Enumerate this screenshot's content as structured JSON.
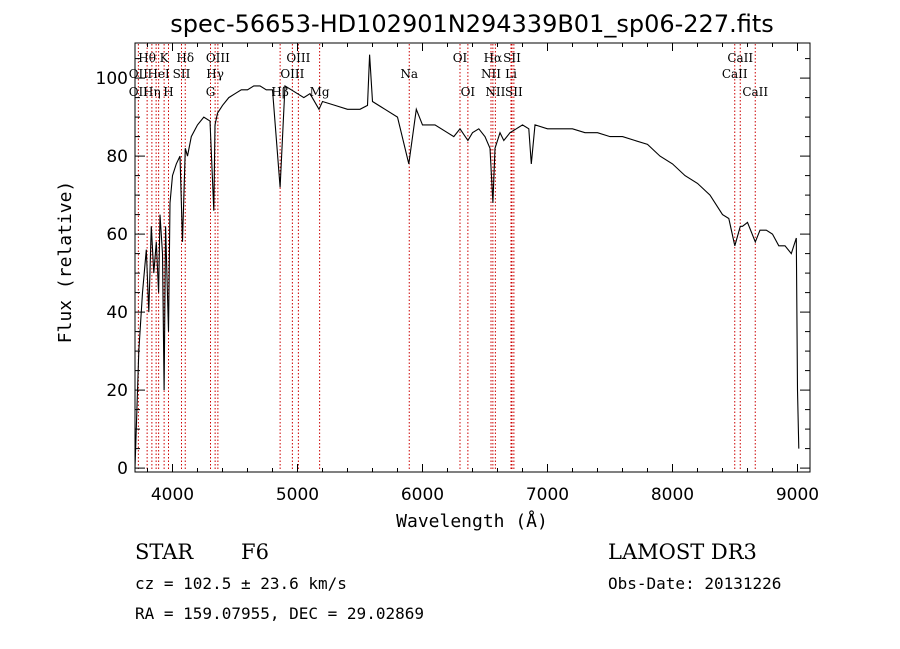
{
  "chart_data": {
    "type": "line",
    "title": "spec-56653-HD102901N294339B01_sp06-227.fits",
    "xlabel": "Wavelength (Å)",
    "ylabel": "Flux (relative)",
    "xlim": [
      3700,
      9100
    ],
    "ylim": [
      -1,
      109
    ],
    "xticks": [
      4000,
      5000,
      6000,
      7000,
      8000,
      9000
    ],
    "yticks": [
      0,
      20,
      40,
      60,
      80,
      100
    ],
    "grid": false,
    "line_color": "#000000",
    "marker_color": "#cc0000",
    "series": [
      {
        "x": [
          3700,
          3730,
          3760,
          3790,
          3810,
          3830,
          3850,
          3870,
          3889,
          3900,
          3920,
          3933,
          3945,
          3968,
          3980,
          4000,
          4030,
          4060,
          4080,
          4102,
          4120,
          4150,
          4200,
          4250,
          4300,
          4330,
          4340,
          4360,
          4400,
          4450,
          4500,
          4550,
          4600,
          4650,
          4700,
          4750,
          4800,
          4861,
          4900,
          4950,
          5000,
          5050,
          5100,
          5172,
          5200,
          5300,
          5400,
          5500,
          5560,
          5577,
          5600,
          5700,
          5800,
          5890,
          5950,
          6000,
          6100,
          6200,
          6250,
          6300,
          6363,
          6400,
          6450,
          6500,
          6540,
          6563,
          6580,
          6620,
          6650,
          6700,
          6750,
          6800,
          6850,
          6870,
          6900,
          7000,
          7100,
          7200,
          7300,
          7400,
          7500,
          7600,
          7700,
          7800,
          7900,
          8000,
          8100,
          8200,
          8300,
          8400,
          8450,
          8498,
          8542,
          8560,
          8600,
          8662,
          8700,
          8750,
          8800,
          8850,
          8900,
          8950,
          8990,
          9000,
          9010
        ],
        "y": [
          0,
          30,
          45,
          56,
          40,
          62,
          50,
          58,
          45,
          65,
          55,
          20,
          62,
          35,
          68,
          75,
          78,
          80,
          58,
          82,
          80,
          85,
          88,
          90,
          89,
          66,
          88,
          91,
          93,
          95,
          96,
          97,
          97,
          98,
          98,
          97,
          97,
          72,
          98,
          97,
          96,
          95,
          96,
          92,
          94,
          93,
          92,
          92,
          93,
          106,
          94,
          92,
          90,
          78,
          92,
          88,
          88,
          86,
          85,
          87,
          84,
          86,
          87,
          85,
          82,
          68,
          82,
          86,
          84,
          86,
          87,
          88,
          87,
          78,
          88,
          87,
          87,
          87,
          86,
          86,
          85,
          85,
          84,
          83,
          80,
          78,
          75,
          73,
          70,
          65,
          64,
          57,
          62,
          62,
          63,
          58,
          61,
          61,
          60,
          57,
          57,
          55,
          59,
          20,
          5
        ]
      }
    ],
    "lines": [
      {
        "wave": 3727,
        "labels": [
          "",
          "OII",
          "OII"
        ]
      },
      {
        "wave": 3797,
        "labels": [
          "Hθ",
          "",
          ""
        ]
      },
      {
        "wave": 3835,
        "labels": [
          "",
          "",
          "Hη"
        ]
      },
      {
        "wave": 3869,
        "labels": [
          "",
          "",
          ""
        ]
      },
      {
        "wave": 3889,
        "labels": [
          "",
          "HeI",
          ""
        ]
      },
      {
        "wave": 3933,
        "labels": [
          "K",
          "",
          ""
        ]
      },
      {
        "wave": 3968,
        "labels": [
          "",
          "",
          "H"
        ]
      },
      {
        "wave": 4072,
        "labels": [
          "",
          "SII",
          ""
        ]
      },
      {
        "wave": 4102,
        "labels": [
          "Hδ",
          "",
          ""
        ]
      },
      {
        "wave": 4304,
        "labels": [
          "",
          "",
          "G"
        ]
      },
      {
        "wave": 4341,
        "labels": [
          "",
          "Hγ",
          ""
        ]
      },
      {
        "wave": 4363,
        "labels": [
          "OIII",
          "",
          ""
        ]
      },
      {
        "wave": 4861,
        "labels": [
          "",
          "",
          "Hβ"
        ]
      },
      {
        "wave": 4959,
        "labels": [
          "",
          "OIII",
          ""
        ]
      },
      {
        "wave": 5007,
        "labels": [
          "OIII",
          "",
          ""
        ]
      },
      {
        "wave": 5177,
        "labels": [
          "",
          "",
          "Mg"
        ]
      },
      {
        "wave": 5894,
        "labels": [
          "",
          "Na",
          ""
        ]
      },
      {
        "wave": 6300,
        "labels": [
          "OI",
          "",
          ""
        ]
      },
      {
        "wave": 6363,
        "labels": [
          "",
          "",
          "OI"
        ]
      },
      {
        "wave": 6548,
        "labels": [
          "",
          "NII",
          ""
        ]
      },
      {
        "wave": 6563,
        "labels": [
          "Hα",
          "",
          ""
        ]
      },
      {
        "wave": 6583,
        "labels": [
          "",
          "",
          "NII"
        ]
      },
      {
        "wave": 6708,
        "labels": [
          "",
          "Li",
          ""
        ]
      },
      {
        "wave": 6716,
        "labels": [
          "SII",
          "",
          ""
        ]
      },
      {
        "wave": 6731,
        "labels": [
          "",
          "",
          "SII"
        ]
      },
      {
        "wave": 8498,
        "labels": [
          "",
          "CaII",
          ""
        ]
      },
      {
        "wave": 8542,
        "labels": [
          "CaII",
          "",
          ""
        ]
      },
      {
        "wave": 8662,
        "labels": [
          "",
          "",
          "CaII"
        ]
      }
    ]
  },
  "info": {
    "object_class": "STAR",
    "subclass": "F6",
    "survey": "LAMOST DR3",
    "redshift": "cz = 102.5 ± 23.6 km/s",
    "obs_date": "Obs-Date: 20131226",
    "coords": "RA = 159.07955, DEC =  29.02869"
  }
}
